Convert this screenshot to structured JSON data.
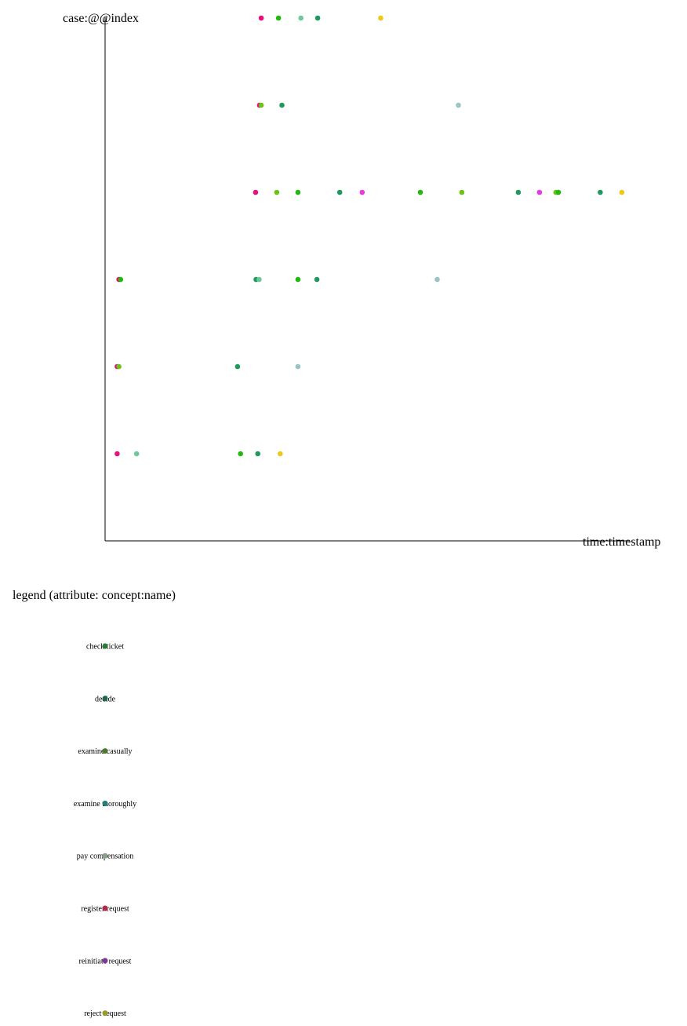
{
  "chart_data": {
    "type": "scatter",
    "xlabel": "time:timestamp",
    "ylabel": "case:@@index",
    "legend_title": "legend (attribute: concept:name)",
    "legend_placement": "bottom-left",
    "grid": false,
    "xlim": [
      0,
      100
    ],
    "cases": [
      0,
      1,
      2,
      3,
      4,
      5
    ],
    "ylim": [
      -1,
      5
    ],
    "categories": [
      {
        "name": "check ticket",
        "color": "#23b80e",
        "legend_color": "#2a7a3a"
      },
      {
        "name": "decide",
        "color": "#1e9a5a",
        "legend_color": "#1e6a4a"
      },
      {
        "name": "examine casually",
        "color": "#6cc21a",
        "legend_color": "#4a7a2a"
      },
      {
        "name": "examine thoroughly",
        "color": "#6ec89a",
        "legend_color": "#2a7a7a"
      },
      {
        "name": "pay compensation",
        "color": "#ecc81a",
        "legend_color": "#8aa08a"
      },
      {
        "name": "register request",
        "color": "#e8107a",
        "legend_color": "#b02a4a"
      },
      {
        "name": "reinitiate request",
        "color": "#e83ae0",
        "legend_color": "#7a3a9a"
      },
      {
        "name": "reject request",
        "color": "#9ac4c4",
        "legend_color": "#9a9a2a"
      }
    ],
    "points": [
      {
        "case": 5,
        "x": 36.2,
        "event": "register request"
      },
      {
        "case": 5,
        "x": 40.2,
        "event": "check ticket"
      },
      {
        "case": 5,
        "x": 45.4,
        "event": "examine thoroughly"
      },
      {
        "case": 5,
        "x": 49.3,
        "event": "decide"
      },
      {
        "case": 5,
        "x": 63.9,
        "event": "pay compensation"
      },
      {
        "case": 4,
        "x": 35.8,
        "event": "register request"
      },
      {
        "case": 4,
        "x": 36.2,
        "event": "examine casually"
      },
      {
        "case": 4,
        "x": 41.0,
        "event": "decide"
      },
      {
        "case": 4,
        "x": 81.9,
        "event": "reject request"
      },
      {
        "case": 3,
        "x": 34.9,
        "event": "register request"
      },
      {
        "case": 3,
        "x": 39.8,
        "event": "examine casually"
      },
      {
        "case": 3,
        "x": 44.7,
        "event": "check ticket"
      },
      {
        "case": 3,
        "x": 54.4,
        "event": "decide"
      },
      {
        "case": 3,
        "x": 59.6,
        "event": "reinitiate request"
      },
      {
        "case": 3,
        "x": 73.1,
        "event": "check ticket"
      },
      {
        "case": 3,
        "x": 82.7,
        "event": "examine casually"
      },
      {
        "case": 3,
        "x": 95.8,
        "event": "decide"
      },
      {
        "case": 3,
        "x": 100.7,
        "event": "reinitiate request"
      },
      {
        "case": 3,
        "x": 104.5,
        "event": "examine casually"
      },
      {
        "case": 3,
        "x": 105.1,
        "event": "check ticket"
      },
      {
        "case": 3,
        "x": 114.8,
        "event": "decide"
      },
      {
        "case": 3,
        "x": 119.8,
        "event": "pay compensation"
      },
      {
        "case": 2,
        "x": 3.2,
        "event": "register request"
      },
      {
        "case": 2,
        "x": 3.6,
        "event": "check ticket"
      },
      {
        "case": 2,
        "x": 35.0,
        "event": "decide"
      },
      {
        "case": 2,
        "x": 35.7,
        "event": "examine thoroughly"
      },
      {
        "case": 2,
        "x": 44.7,
        "event": "check ticket"
      },
      {
        "case": 2,
        "x": 49.1,
        "event": "decide"
      },
      {
        "case": 2,
        "x": 77.0,
        "event": "reject request"
      },
      {
        "case": 1,
        "x": 2.8,
        "event": "register request"
      },
      {
        "case": 1,
        "x": 3.2,
        "event": "examine casually"
      },
      {
        "case": 1,
        "x": 30.7,
        "event": "decide"
      },
      {
        "case": 1,
        "x": 44.7,
        "event": "reject request"
      },
      {
        "case": 0,
        "x": 2.8,
        "event": "register request"
      },
      {
        "case": 0,
        "x": 7.3,
        "event": "examine thoroughly"
      },
      {
        "case": 0,
        "x": 31.4,
        "event": "check ticket"
      },
      {
        "case": 0,
        "x": 35.4,
        "event": "decide"
      },
      {
        "case": 0,
        "x": 40.6,
        "event": "pay compensation"
      }
    ]
  }
}
